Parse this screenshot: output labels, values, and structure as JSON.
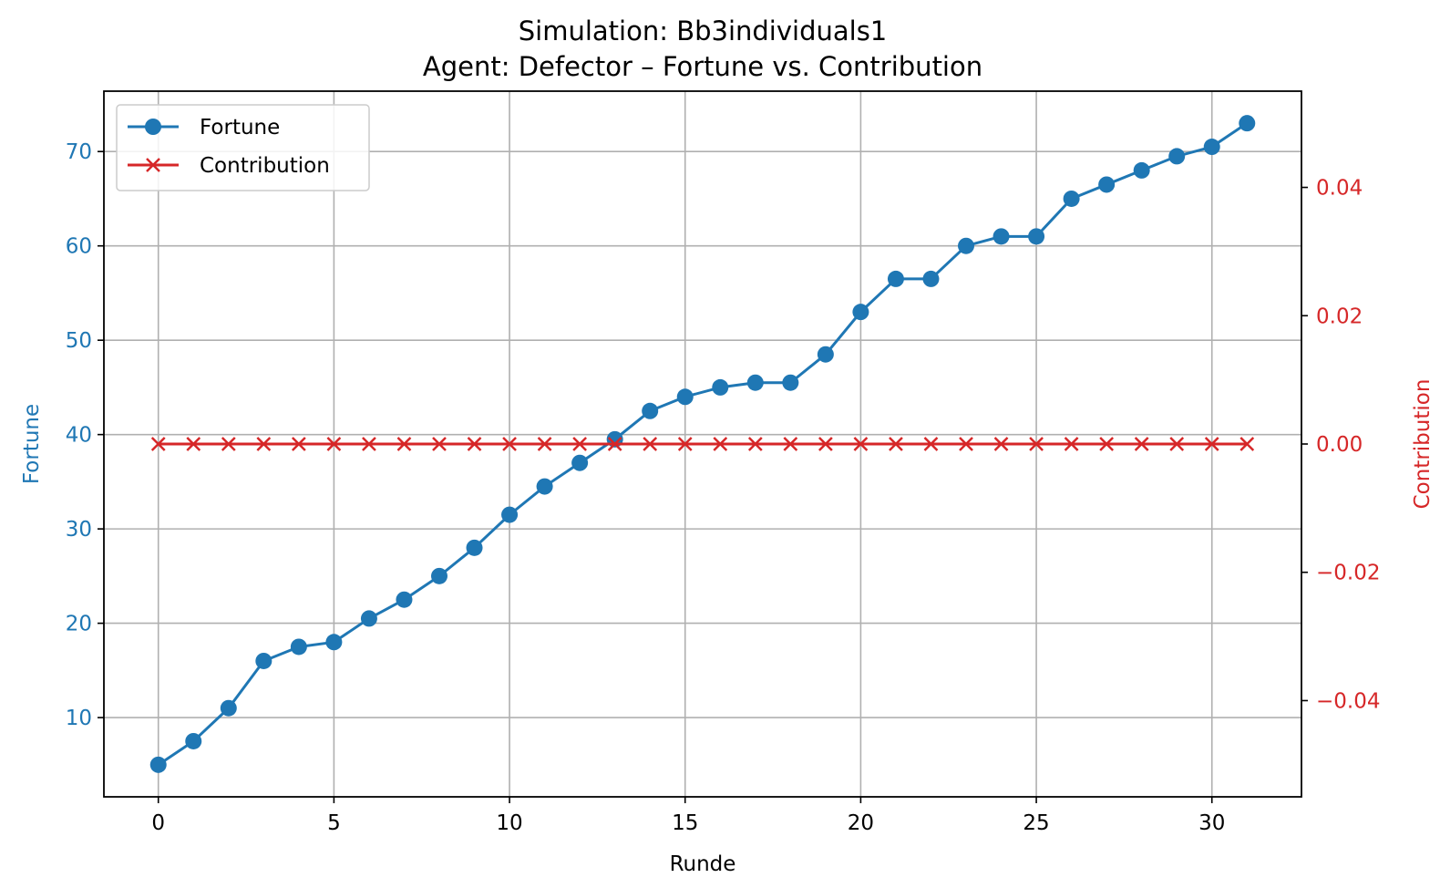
{
  "chart_data": {
    "type": "line",
    "title": "Simulation: Bb3individuals1",
    "subtitle": "Agent: Defector – Fortune vs. Contribution",
    "xlabel": "Runde",
    "ylabel_left": "Fortune",
    "ylabel_right": "Contribution",
    "xlim": [
      -1.55,
      32.55
    ],
    "ylim_left": [
      1.6,
      76.4
    ],
    "ylim_right": [
      -0.055,
      0.055
    ],
    "x_ticks": [
      "0",
      "5",
      "10",
      "15",
      "20",
      "25",
      "30"
    ],
    "y_left_ticks": [
      "10",
      "20",
      "30",
      "40",
      "50",
      "60",
      "70"
    ],
    "y_right_ticks": [
      "−0.04",
      "−0.02",
      "0.00",
      "0.02",
      "0.04"
    ],
    "grid": true,
    "legend_position": "upper-left",
    "x": [
      0,
      1,
      2,
      3,
      4,
      5,
      6,
      7,
      8,
      9,
      10,
      11,
      12,
      13,
      14,
      15,
      16,
      17,
      18,
      19,
      20,
      21,
      22,
      23,
      24,
      25,
      26,
      27,
      28,
      29,
      30,
      31
    ],
    "series": [
      {
        "name": "Fortune",
        "axis": "left",
        "color": "#1f77b4",
        "marker": "circle",
        "values": [
          5,
          7.5,
          11,
          16,
          17.5,
          18,
          20.5,
          22.5,
          25,
          28,
          31.5,
          34.5,
          37,
          39.5,
          42.5,
          44,
          45,
          45.5,
          45.5,
          48.5,
          53,
          56.5,
          56.5,
          60,
          61,
          61,
          65,
          66.5,
          68,
          69.5,
          70.5,
          73
        ]
      },
      {
        "name": "Contribution",
        "axis": "right",
        "color": "#d62728",
        "marker": "x",
        "values": [
          0,
          0,
          0,
          0,
          0,
          0,
          0,
          0,
          0,
          0,
          0,
          0,
          0,
          0,
          0,
          0,
          0,
          0,
          0,
          0,
          0,
          0,
          0,
          0,
          0,
          0,
          0,
          0,
          0,
          0,
          0,
          0
        ]
      }
    ]
  }
}
